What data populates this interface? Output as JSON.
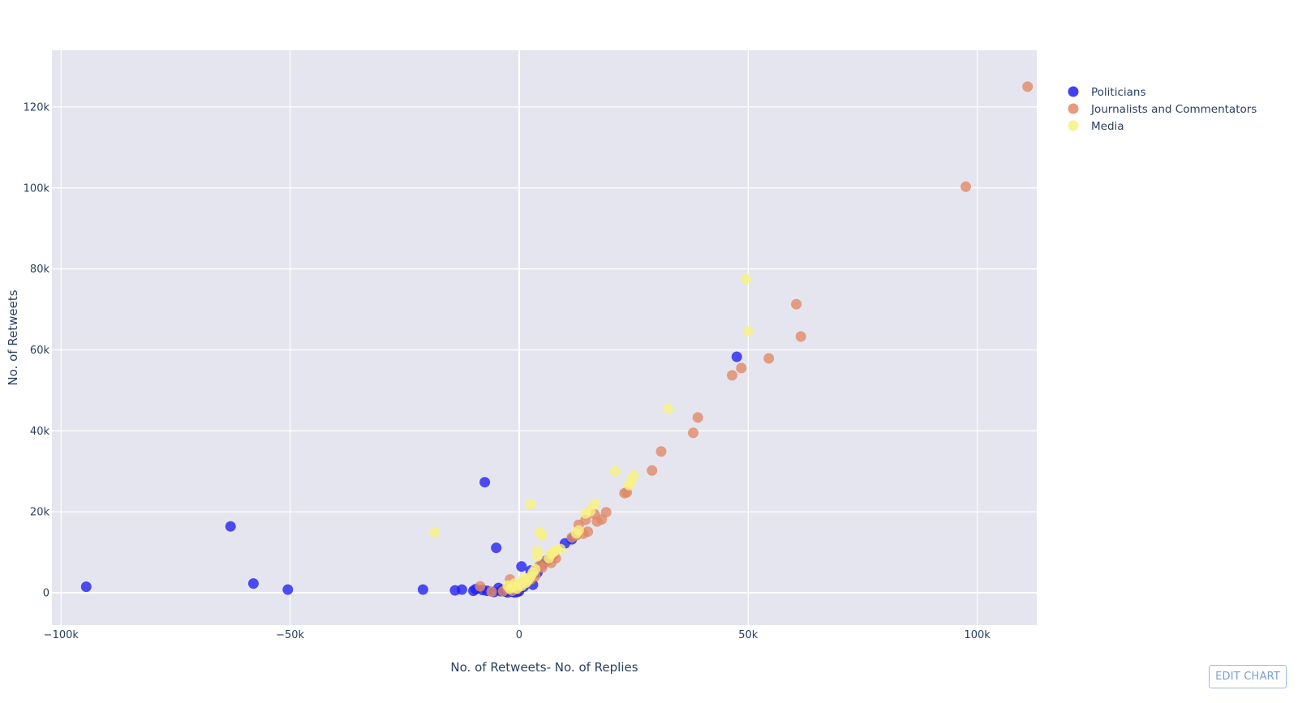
{
  "edit_button": {
    "label": "EDIT CHART"
  },
  "chart_data": {
    "type": "scatter",
    "title": "",
    "xlabel": "No. of Retweets- No. of Replies",
    "ylabel": "No. of Retweets",
    "xlim": [
      -102000,
      113000
    ],
    "ylim": [
      -8000,
      134000
    ],
    "x_ticks": [
      {
        "value": -100000,
        "label": "−100k"
      },
      {
        "value": -50000,
        "label": "−50k"
      },
      {
        "value": 0,
        "label": "0"
      },
      {
        "value": 50000,
        "label": "50k"
      },
      {
        "value": 100000,
        "label": "100k"
      }
    ],
    "y_ticks": [
      {
        "value": 0,
        "label": "0"
      },
      {
        "value": 20000,
        "label": "20k"
      },
      {
        "value": 40000,
        "label": "40k"
      },
      {
        "value": 60000,
        "label": "60k"
      },
      {
        "value": 80000,
        "label": "80k"
      },
      {
        "value": 100000,
        "label": "100k"
      },
      {
        "value": 120000,
        "label": "120k"
      }
    ],
    "grid": true,
    "plot_background": "#e5e5ef",
    "legend_position": "top-right",
    "series": [
      {
        "name": "Politicians",
        "color": "#1f1ff0",
        "points": [
          [
            -94500,
            1500
          ],
          [
            -63000,
            16400
          ],
          [
            -58000,
            2300
          ],
          [
            -50500,
            800
          ],
          [
            -21000,
            800
          ],
          [
            -14000,
            600
          ],
          [
            -12500,
            800
          ],
          [
            -10000,
            500
          ],
          [
            -9500,
            900
          ],
          [
            -8000,
            700
          ],
          [
            -7500,
            27300
          ],
          [
            -7000,
            500
          ],
          [
            -5500,
            200
          ],
          [
            -5000,
            11100
          ],
          [
            -4500,
            1200
          ],
          [
            -4000,
            400
          ],
          [
            -3500,
            800
          ],
          [
            -3000,
            300
          ],
          [
            -2500,
            100
          ],
          [
            -2000,
            600
          ],
          [
            -1500,
            300
          ],
          [
            -1000,
            100
          ],
          [
            -500,
            200
          ],
          [
            0,
            400
          ],
          [
            500,
            6500
          ],
          [
            1000,
            1500
          ],
          [
            1500,
            2500
          ],
          [
            2000,
            3000
          ],
          [
            2500,
            5500
          ],
          [
            3000,
            2000
          ],
          [
            4000,
            5000
          ],
          [
            5000,
            7000
          ],
          [
            6000,
            8000
          ],
          [
            7000,
            9000
          ],
          [
            10000,
            12200
          ],
          [
            11500,
            13200
          ],
          [
            47500,
            58300
          ]
        ]
      },
      {
        "name": "Journalists and Commentators",
        "color": "#e08a66",
        "points": [
          [
            111000,
            125000
          ],
          [
            97500,
            100300
          ],
          [
            60500,
            71300
          ],
          [
            61500,
            63300
          ],
          [
            54500,
            57900
          ],
          [
            48500,
            55500
          ],
          [
            46500,
            53700
          ],
          [
            39000,
            43300
          ],
          [
            38000,
            39500
          ],
          [
            31000,
            34900
          ],
          [
            29000,
            30200
          ],
          [
            23500,
            24800
          ],
          [
            23000,
            24600
          ],
          [
            19000,
            19900
          ],
          [
            18000,
            18100
          ],
          [
            17000,
            17600
          ],
          [
            16500,
            19400
          ],
          [
            15000,
            15100
          ],
          [
            14500,
            18000
          ],
          [
            14000,
            14600
          ],
          [
            13000,
            16800
          ],
          [
            12500,
            14200
          ],
          [
            11500,
            13700
          ],
          [
            8000,
            8500
          ],
          [
            7500,
            9200
          ],
          [
            7000,
            7400
          ],
          [
            6000,
            7800
          ],
          [
            5000,
            6200
          ],
          [
            4500,
            6700
          ],
          [
            3500,
            4100
          ],
          [
            2500,
            3300
          ],
          [
            1500,
            2600
          ],
          [
            500,
            2100
          ],
          [
            -500,
            900
          ],
          [
            -1000,
            1400
          ],
          [
            -1500,
            500
          ],
          [
            -2000,
            3300
          ],
          [
            -2500,
            1100
          ],
          [
            -3500,
            400
          ],
          [
            -6000,
            300
          ],
          [
            -8500,
            1600
          ]
        ]
      },
      {
        "name": "Media",
        "color": "#f7f182",
        "points": [
          [
            49500,
            77500
          ],
          [
            50000,
            64600
          ],
          [
            32500,
            45400
          ],
          [
            21000,
            30000
          ],
          [
            25000,
            29000
          ],
          [
            24500,
            27700
          ],
          [
            24000,
            26600
          ],
          [
            16500,
            21900
          ],
          [
            15500,
            20200
          ],
          [
            14500,
            19600
          ],
          [
            13000,
            15400
          ],
          [
            12500,
            14700
          ],
          [
            9000,
            10800
          ],
          [
            8000,
            10500
          ],
          [
            7500,
            10100
          ],
          [
            7000,
            9600
          ],
          [
            6500,
            8600
          ],
          [
            5000,
            14200
          ],
          [
            4500,
            14900
          ],
          [
            4000,
            10300
          ],
          [
            4000,
            9000
          ],
          [
            3500,
            5800
          ],
          [
            3000,
            5000
          ],
          [
            2500,
            21800
          ],
          [
            2500,
            4000
          ],
          [
            2000,
            3200
          ],
          [
            1500,
            2500
          ],
          [
            1000,
            3500
          ],
          [
            500,
            1700
          ],
          [
            0,
            2000
          ],
          [
            -500,
            1100
          ],
          [
            -1000,
            2300
          ],
          [
            -1500,
            1500
          ],
          [
            -2000,
            1000
          ],
          [
            -2500,
            1800
          ],
          [
            -18500,
            15000
          ]
        ]
      }
    ]
  }
}
